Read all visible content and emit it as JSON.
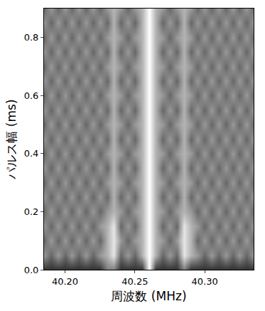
{
  "chart_data": {
    "type": "heatmap",
    "xlabel": "周波数 (MHz)",
    "ylabel": "パルス幅 (ms)",
    "xlim": [
      40.185,
      40.335
    ],
    "ylim": [
      0,
      0.9
    ],
    "xticks": [
      {
        "value": 40.2,
        "label": "40.20"
      },
      {
        "value": 40.25,
        "label": "40.25"
      },
      {
        "value": 40.3,
        "label": "40.30"
      }
    ],
    "yticks": [
      {
        "value": 0,
        "label": "0.0"
      },
      {
        "value": 0.2,
        "label": "0.2"
      },
      {
        "value": 0.4,
        "label": "0.4"
      },
      {
        "value": 0.6,
        "label": "0.6"
      },
      {
        "value": 0.8,
        "label": "0.8"
      }
    ],
    "zlim": [
      0,
      10
    ],
    "colors": [
      "#000000",
      "#ffffff"
    ],
    "x": [
      40.185,
      40.19,
      40.195,
      40.2,
      40.205,
      40.21,
      40.215,
      40.22,
      40.225,
      40.23,
      40.235,
      40.24,
      40.245,
      40.25,
      40.255,
      40.26,
      40.265,
      40.27,
      40.275,
      40.28,
      40.285,
      40.29,
      40.295,
      40.3,
      40.305,
      40.31,
      40.315,
      40.32,
      40.325,
      40.33,
      40.335
    ],
    "y": [
      0,
      0.05,
      0.1,
      0.15,
      0.2,
      0.25,
      0.3,
      0.35,
      0.4,
      0.45,
      0.5,
      0.55,
      0.6,
      0.65,
      0.7,
      0.75,
      0.8,
      0.85,
      0.9
    ],
    "z": [
      [
        2,
        2,
        2,
        2,
        2,
        2,
        2,
        2,
        2,
        5,
        5,
        2,
        2,
        2,
        2,
        10,
        2,
        2,
        2,
        2,
        5,
        2,
        2,
        2,
        2,
        2,
        2,
        2,
        2,
        2,
        2
      ],
      [
        6,
        4,
        6,
        4,
        6,
        4,
        6,
        4,
        6,
        7,
        9,
        4,
        6,
        4,
        7,
        10,
        7,
        4,
        6,
        4,
        9,
        7,
        6,
        4,
        6,
        4,
        6,
        4,
        6,
        4,
        6
      ],
      [
        4,
        6,
        4,
        6,
        4,
        6,
        4,
        6,
        4,
        7,
        9,
        6,
        4,
        6,
        7,
        10,
        7,
        6,
        4,
        6,
        9,
        7,
        4,
        6,
        4,
        6,
        4,
        6,
        4,
        6,
        4
      ],
      [
        6,
        4,
        6,
        4,
        6,
        4,
        6,
        4,
        6,
        7,
        9,
        4,
        6,
        4,
        7,
        10,
        7,
        4,
        6,
        4,
        9,
        7,
        6,
        4,
        6,
        4,
        6,
        4,
        6,
        4,
        6
      ],
      [
        4,
        6,
        4,
        6,
        4,
        6,
        4,
        6,
        4,
        6,
        7,
        6,
        4,
        6,
        7,
        10,
        7,
        6,
        4,
        6,
        7,
        6,
        4,
        6,
        4,
        6,
        4,
        6,
        4,
        6,
        4
      ],
      [
        6,
        4,
        6,
        4,
        6,
        4,
        6,
        4,
        6,
        4,
        7,
        4,
        6,
        4,
        7,
        10,
        7,
        4,
        6,
        4,
        7,
        4,
        6,
        4,
        6,
        4,
        6,
        4,
        6,
        4,
        6
      ],
      [
        4,
        6,
        4,
        6,
        4,
        6,
        4,
        6,
        4,
        6,
        7,
        6,
        4,
        6,
        7,
        10,
        7,
        6,
        4,
        6,
        7,
        6,
        4,
        6,
        4,
        6,
        4,
        6,
        4,
        6,
        4
      ],
      [
        6,
        4,
        6,
        4,
        6,
        4,
        6,
        4,
        6,
        4,
        7,
        4,
        6,
        4,
        7,
        10,
        7,
        4,
        6,
        4,
        7,
        4,
        6,
        4,
        6,
        4,
        6,
        4,
        6,
        4,
        6
      ],
      [
        4,
        6,
        4,
        6,
        4,
        6,
        4,
        6,
        4,
        6,
        7,
        6,
        4,
        6,
        7,
        10,
        7,
        6,
        4,
        6,
        7,
        6,
        4,
        6,
        4,
        6,
        4,
        6,
        4,
        6,
        4
      ],
      [
        6,
        4,
        6,
        4,
        6,
        4,
        6,
        4,
        6,
        4,
        7,
        4,
        6,
        4,
        7,
        10,
        7,
        4,
        6,
        4,
        7,
        4,
        6,
        4,
        6,
        4,
        6,
        4,
        6,
        4,
        6
      ],
      [
        4,
        6,
        4,
        6,
        4,
        6,
        4,
        6,
        4,
        6,
        7,
        6,
        4,
        6,
        7,
        10,
        7,
        6,
        4,
        6,
        7,
        6,
        4,
        6,
        4,
        6,
        4,
        6,
        4,
        6,
        4
      ],
      [
        6,
        4,
        6,
        4,
        6,
        4,
        6,
        4,
        6,
        4,
        7,
        4,
        6,
        4,
        7,
        10,
        7,
        4,
        6,
        4,
        7,
        4,
        6,
        4,
        6,
        4,
        6,
        4,
        6,
        4,
        6
      ],
      [
        4,
        6,
        4,
        6,
        4,
        6,
        4,
        6,
        4,
        6,
        7,
        6,
        4,
        6,
        7,
        10,
        7,
        6,
        4,
        6,
        7,
        6,
        4,
        6,
        4,
        6,
        4,
        6,
        4,
        6,
        4
      ],
      [
        6,
        4,
        6,
        4,
        6,
        4,
        6,
        4,
        6,
        4,
        7,
        4,
        6,
        4,
        7,
        10,
        7,
        4,
        6,
        4,
        7,
        4,
        6,
        4,
        6,
        4,
        6,
        4,
        6,
        4,
        6
      ],
      [
        4,
        6,
        4,
        6,
        4,
        6,
        4,
        6,
        4,
        6,
        7,
        6,
        4,
        6,
        7,
        10,
        7,
        6,
        4,
        6,
        7,
        6,
        4,
        6,
        4,
        6,
        4,
        6,
        4,
        6,
        4
      ],
      [
        6,
        4,
        6,
        4,
        6,
        4,
        6,
        4,
        6,
        4,
        7,
        4,
        6,
        4,
        7,
        10,
        7,
        4,
        6,
        4,
        7,
        4,
        6,
        4,
        6,
        4,
        6,
        4,
        6,
        4,
        6
      ],
      [
        4,
        6,
        4,
        6,
        4,
        6,
        4,
        6,
        4,
        6,
        7,
        6,
        4,
        6,
        7,
        10,
        7,
        6,
        4,
        6,
        7,
        6,
        4,
        6,
        4,
        6,
        4,
        6,
        4,
        6,
        4
      ],
      [
        6,
        4,
        6,
        4,
        6,
        4,
        6,
        4,
        6,
        4,
        7,
        4,
        6,
        4,
        7,
        10,
        7,
        4,
        6,
        4,
        7,
        4,
        6,
        4,
        6,
        4,
        6,
        4,
        6,
        4,
        6
      ],
      [
        4,
        6,
        4,
        6,
        4,
        6,
        4,
        6,
        4,
        6,
        7,
        6,
        4,
        6,
        7,
        10,
        7,
        6,
        4,
        6,
        7,
        6,
        4,
        6,
        4,
        6,
        4,
        6,
        4,
        6,
        4
      ]
    ]
  }
}
